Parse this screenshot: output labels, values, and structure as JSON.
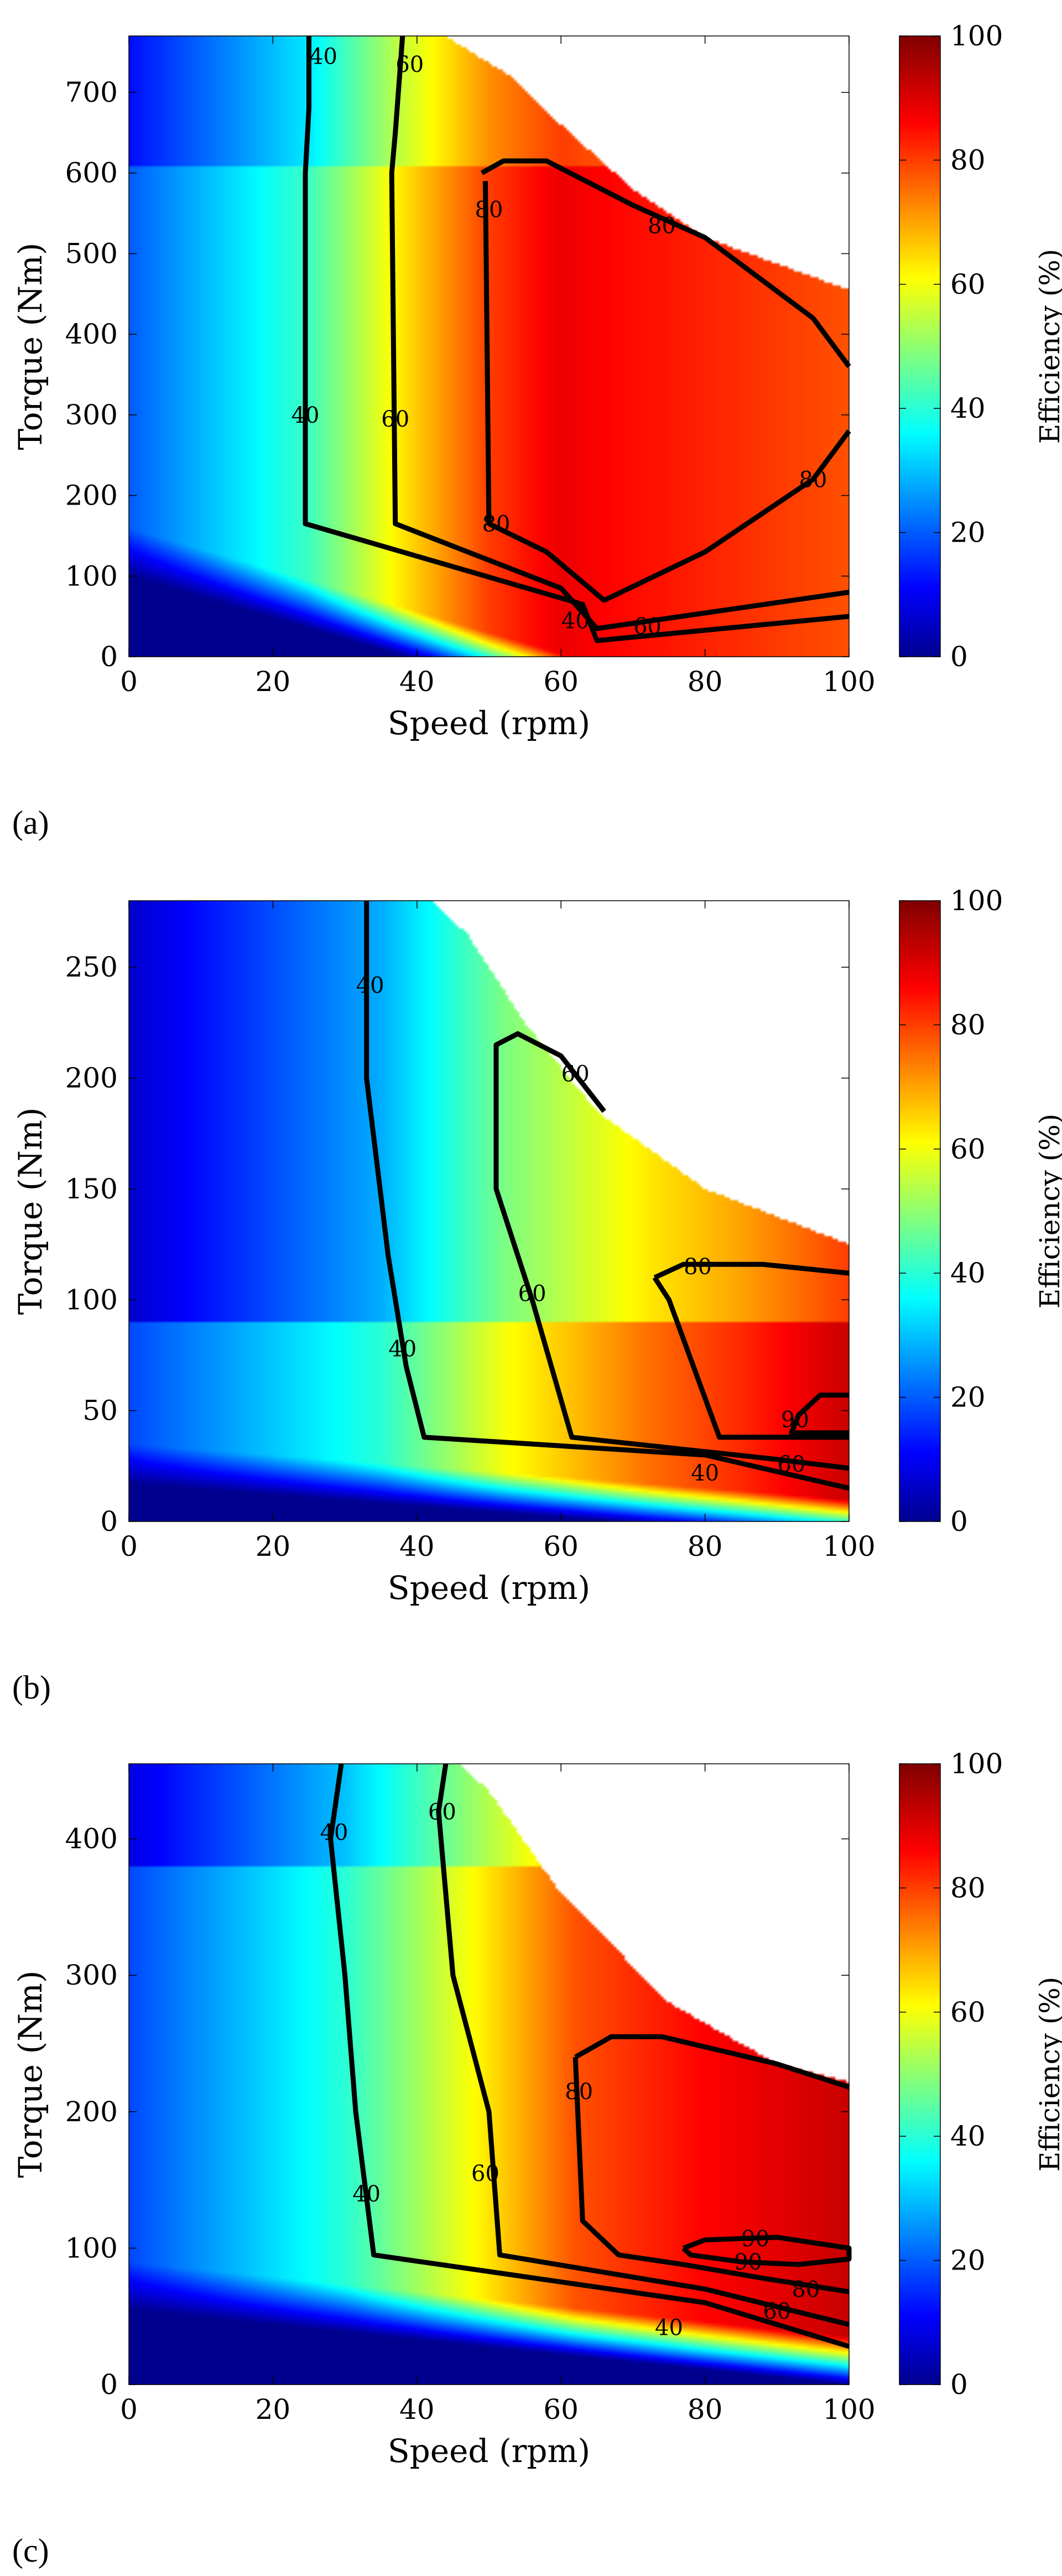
{
  "chart_data": [
    {
      "type": "heatmap",
      "panel_label": "(a)",
      "xlabel": "Speed (rpm)",
      "ylabel": "Torque (Nm)",
      "colorbar_label": "Efficiency (%)",
      "xlim": [
        0,
        100
      ],
      "ylim": [
        0,
        770
      ],
      "xticks": [
        0,
        20,
        40,
        60,
        80,
        100
      ],
      "yticks": [
        0,
        100,
        200,
        300,
        400,
        500,
        600,
        700
      ],
      "colorbar_ticks": [
        0,
        20,
        40,
        60,
        80,
        100
      ],
      "colormap": "jet",
      "operating_boundary": [
        [
          0,
          770
        ],
        [
          44,
          770
        ],
        [
          53,
          720
        ],
        [
          60,
          660
        ],
        [
          70,
          580
        ],
        [
          80,
          520
        ],
        [
          100,
          455
        ]
      ],
      "field": {
        "grid": [
          [
            0,
            20
          ],
          [
            25,
            42
          ],
          [
            37,
            62
          ],
          [
            50,
            80
          ],
          [
            60,
            88
          ],
          [
            66,
            86
          ],
          [
            100,
            78
          ]
        ],
        "low_torque": {
          "y0": 160,
          "slope": 2.6,
          "falloff": 60
        },
        "high_torque_cap": {
          "from": 610,
          "drop": 8
        }
      },
      "contours": [
        {
          "level": "40",
          "points": [
            [
              25,
              770
            ],
            [
              25,
              680
            ],
            [
              24.5,
              600
            ],
            [
              24.5,
              165
            ],
            [
              63,
              65
            ],
            [
              65,
              20
            ],
            [
              100,
              50
            ]
          ],
          "labels": [
            [
              27,
              745
            ],
            [
              24.5,
              300
            ],
            [
              62,
              45
            ]
          ]
        },
        {
          "level": "60",
          "points": [
            [
              38,
              770
            ],
            [
              37,
              650
            ],
            [
              36.5,
              600
            ],
            [
              37,
              165
            ],
            [
              60,
              85
            ],
            [
              65,
              35
            ],
            [
              100,
              80
            ]
          ],
          "labels": [
            [
              39,
              735
            ],
            [
              37,
              295
            ],
            [
              72,
              38
            ]
          ]
        },
        {
          "level": "80",
          "points": [
            [
              49,
              600
            ],
            [
              52,
              615
            ],
            [
              58,
              615
            ],
            [
              70,
              560
            ],
            [
              80,
              520
            ],
            [
              95,
              420
            ],
            [
              100,
              360
            ]
          ],
          "labels": [
            [
              50,
              555
            ],
            [
              74,
              535
            ]
          ]
        },
        {
          "level": "80",
          "points": [
            [
              100,
              280
            ],
            [
              95,
              220
            ],
            [
              80,
              130
            ],
            [
              66,
              70
            ],
            [
              58,
              130
            ],
            [
              50,
              165
            ],
            [
              49.5,
              590
            ]
          ],
          "labels": [
            [
              51,
              165
            ],
            [
              95,
              220
            ]
          ]
        }
      ]
    },
    {
      "type": "heatmap",
      "panel_label": "(b)",
      "xlabel": "Speed (rpm)",
      "ylabel": "Torque (Nm)",
      "colorbar_label": "Efficiency (%)",
      "xlim": [
        0,
        100
      ],
      "ylim": [
        0,
        280
      ],
      "xticks": [
        0,
        20,
        40,
        60,
        80,
        100
      ],
      "yticks": [
        0,
        50,
        100,
        150,
        200,
        250
      ],
      "colorbar_ticks": [
        0,
        20,
        40,
        60,
        80,
        100
      ],
      "colormap": "jet",
      "operating_boundary": [
        [
          0,
          280
        ],
        [
          42,
          280
        ],
        [
          47,
          265
        ],
        [
          55,
          225
        ],
        [
          65,
          185
        ],
        [
          80,
          150
        ],
        [
          100,
          125
        ]
      ],
      "field": {
        "grid": [
          [
            0,
            18
          ],
          [
            35,
            40
          ],
          [
            52,
            60
          ],
          [
            72,
            75
          ],
          [
            85,
            82
          ],
          [
            100,
            92
          ]
        ],
        "low_torque": {
          "y0": 35,
          "slope": 0.25,
          "falloff": 18
        },
        "high_torque_cap": {
          "from": 90,
          "drop": 12
        }
      },
      "contours": [
        {
          "level": "40",
          "points": [
            [
              33,
              280
            ],
            [
              33,
              200
            ],
            [
              36,
              120
            ],
            [
              38.5,
              70
            ],
            [
              41,
              38
            ],
            [
              80,
              30
            ],
            [
              100,
              15
            ]
          ],
          "labels": [
            [
              33.5,
              242
            ],
            [
              38,
              78
            ],
            [
              80,
              22
            ]
          ]
        },
        {
          "level": "60",
          "points": [
            [
              66,
              185
            ],
            [
              60,
              210
            ],
            [
              54,
              220
            ],
            [
              51,
              215
            ],
            [
              51,
              150
            ],
            [
              56,
              100
            ],
            [
              61.5,
              38
            ],
            [
              90,
              28
            ],
            [
              100,
              24
            ]
          ],
          "labels": [
            [
              62,
              202
            ],
            [
              56,
              103
            ],
            [
              92,
              26
            ]
          ]
        },
        {
          "level": "80",
          "points": [
            [
              73,
              110
            ],
            [
              77,
              116
            ],
            [
              88,
              116
            ],
            [
              100,
              112
            ]
          ],
          "labels": [
            [
              79,
              115
            ]
          ]
        },
        {
          "level": "80",
          "points": [
            [
              100,
              38
            ],
            [
              90,
              38
            ],
            [
              82,
              38
            ],
            [
              75,
              100
            ],
            [
              73,
              110
            ]
          ],
          "labels": []
        },
        {
          "level": "90",
          "points": [
            [
              100,
              57
            ],
            [
              96,
              57
            ],
            [
              93,
              48
            ],
            [
              92,
              40
            ],
            [
              100,
              40
            ]
          ],
          "labels": [
            [
              92.5,
              46
            ]
          ]
        }
      ]
    },
    {
      "type": "heatmap",
      "panel_label": "(c)",
      "xlabel": "Speed (rpm)",
      "ylabel": "Torque (Nm)",
      "colorbar_label": "Efficiency (%)",
      "xlim": [
        0,
        100
      ],
      "ylim": [
        0,
        455
      ],
      "xticks": [
        0,
        20,
        40,
        60,
        80,
        100
      ],
      "yticks": [
        0,
        100,
        200,
        300,
        400
      ],
      "colorbar_ticks": [
        0,
        20,
        40,
        60,
        80,
        100
      ],
      "colormap": "jet",
      "operating_boundary": [
        [
          0,
          455
        ],
        [
          46,
          455
        ],
        [
          50,
          435
        ],
        [
          60,
          360
        ],
        [
          75,
          280
        ],
        [
          90,
          235
        ],
        [
          100,
          222
        ]
      ],
      "field": {
        "grid": [
          [
            0,
            18
          ],
          [
            30,
            40
          ],
          [
            47,
            60
          ],
          [
            62,
            78
          ],
          [
            80,
            86
          ],
          [
            100,
            92
          ]
        ],
        "low_torque": {
          "y0": 90,
          "slope": 0.55,
          "falloff": 35
        },
        "high_torque_cap": {
          "from": 380,
          "drop": 10
        }
      },
      "contours": [
        {
          "level": "40",
          "points": [
            [
              29.5,
              455
            ],
            [
              28,
              400
            ],
            [
              30,
              300
            ],
            [
              31.5,
              200
            ],
            [
              34,
              95
            ],
            [
              80,
              60
            ],
            [
              100,
              28
            ]
          ],
          "labels": [
            [
              28.5,
              405
            ],
            [
              33,
              140
            ],
            [
              75,
              42
            ]
          ]
        },
        {
          "level": "60",
          "points": [
            [
              44,
              455
            ],
            [
              43,
              420
            ],
            [
              45,
              300
            ],
            [
              50,
              200
            ],
            [
              51.5,
              95
            ],
            [
              80,
              70
            ],
            [
              100,
              44
            ]
          ],
          "labels": [
            [
              43.5,
              420
            ],
            [
              49.5,
              155
            ],
            [
              90,
              54
            ]
          ]
        },
        {
          "level": "80",
          "points": [
            [
              62,
              240
            ],
            [
              67,
              255
            ],
            [
              74,
              255
            ],
            [
              90,
              235
            ],
            [
              100,
              218
            ]
          ],
          "labels": [
            [
              62.5,
              215
            ]
          ]
        },
        {
          "level": "80",
          "points": [
            [
              100,
              68
            ],
            [
              88,
              78
            ],
            [
              77,
              88
            ],
            [
              68,
              95
            ],
            [
              63,
              120
            ],
            [
              62,
              240
            ]
          ],
          "labels": [
            [
              94,
              70
            ]
          ]
        },
        {
          "level": "90",
          "points": [
            [
              77,
              100
            ],
            [
              80,
              106
            ],
            [
              90,
              108
            ],
            [
              100,
              100
            ],
            [
              100,
              92
            ],
            [
              93,
              88
            ],
            [
              85,
              90
            ],
            [
              78,
              95
            ],
            [
              77,
              100
            ]
          ],
          "labels": [
            [
              87,
              107
            ],
            [
              86,
              90
            ]
          ]
        }
      ]
    }
  ]
}
